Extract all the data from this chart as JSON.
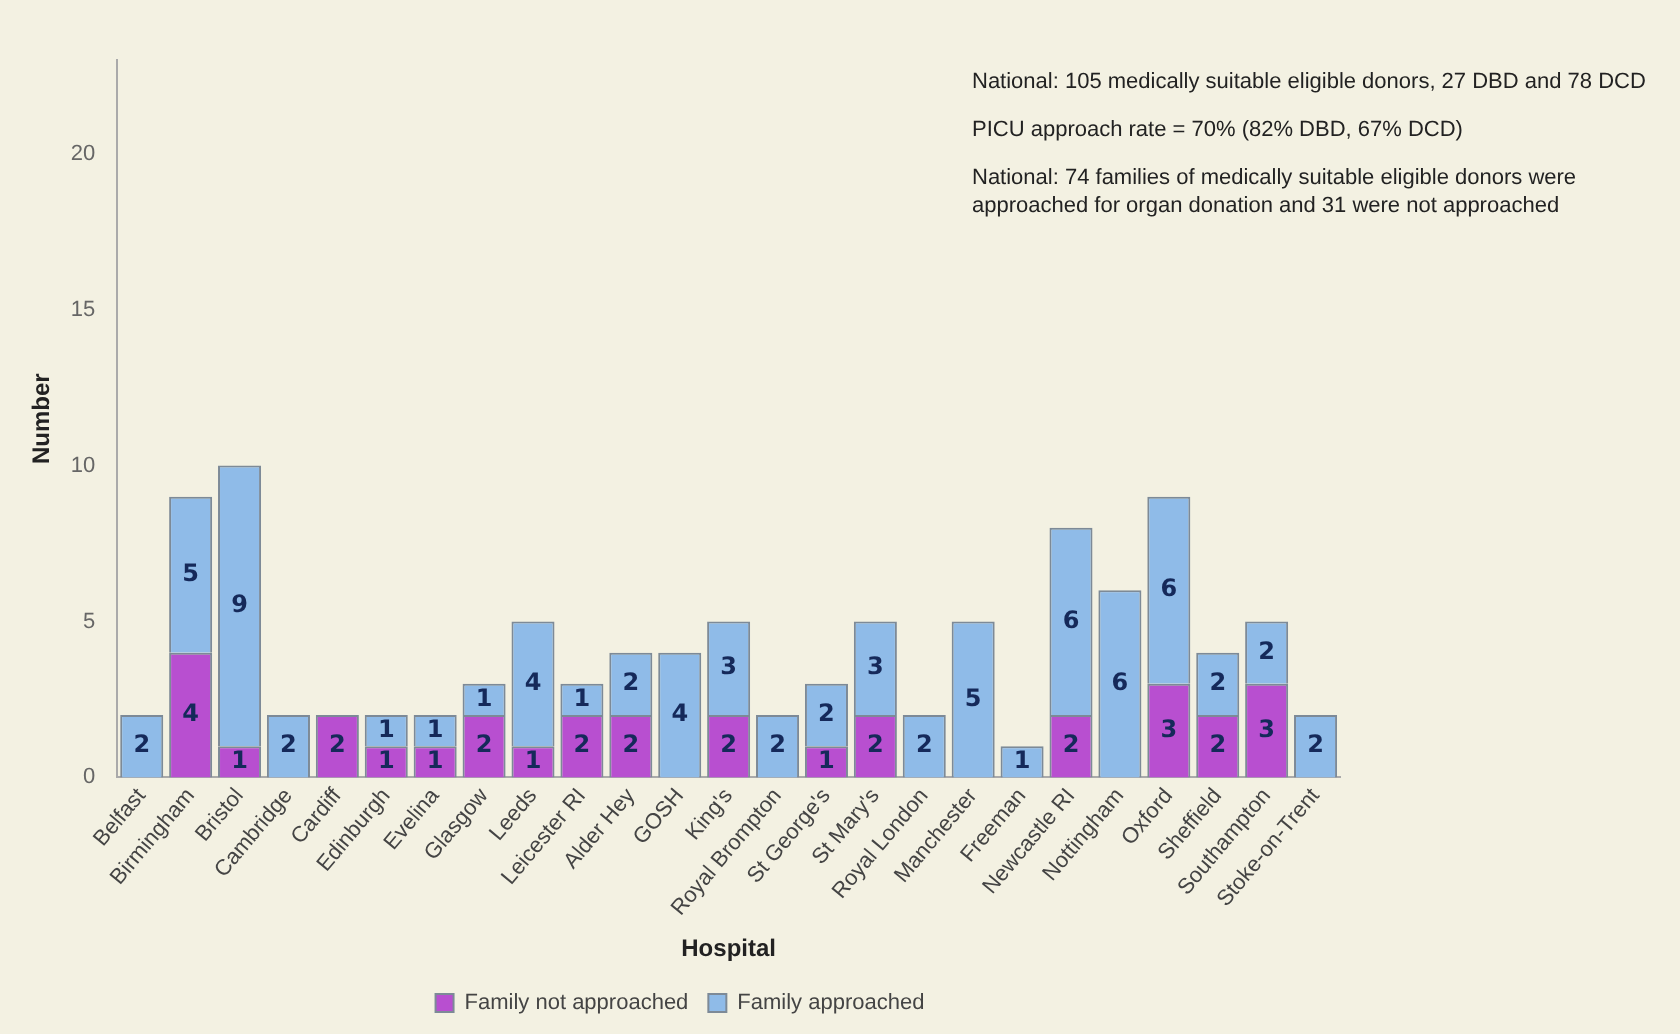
{
  "chart_data": {
    "type": "bar",
    "stacked": true,
    "xlabel": "Hospital",
    "ylabel": "Number",
    "categories": [
      "Belfast",
      "Birmingham",
      "Bristol",
      "Cambridge",
      "Cardiff",
      "Edinburgh",
      "Evelina",
      "Glasgow",
      "Leeds",
      "Leicester RI",
      "Alder Hey",
      "GOSH",
      "King's",
      "Royal Brompton",
      "St George's",
      "St Mary's",
      "Royal London",
      "Manchester",
      "Freeman",
      "Newcastle RI",
      "Nottingham",
      "Oxford",
      "Sheffield",
      "Southampton",
      "Stoke-on-Trent"
    ],
    "series": [
      {
        "name": "Family not approached",
        "color": "#b84fd0",
        "values": [
          null,
          4,
          1,
          null,
          2,
          1,
          1,
          2,
          1,
          2,
          2,
          null,
          2,
          null,
          1,
          2,
          null,
          null,
          null,
          2,
          null,
          3,
          2,
          3,
          null
        ]
      },
      {
        "name": "Family approached",
        "color": "#8fbbe8",
        "values": [
          2,
          5,
          9,
          2,
          null,
          1,
          1,
          1,
          4,
          1,
          2,
          4,
          3,
          2,
          2,
          3,
          2,
          5,
          1,
          6,
          6,
          6,
          2,
          2,
          2
        ]
      }
    ],
    "ylim": [
      0,
      23
    ],
    "yticks": [
      0,
      5,
      10,
      15,
      20
    ],
    "grid": false,
    "legend": "bottom",
    "data_labels": true,
    "annotations": [
      "National: 105 medically suitable eligible donors, 27 DBD and 78 DCD",
      "PICU approach rate = 70% (82% DBD, 67% DCD)",
      "National: 74 families of medically suitable eligible donors were approached for organ donation and 31 were not approached"
    ]
  }
}
